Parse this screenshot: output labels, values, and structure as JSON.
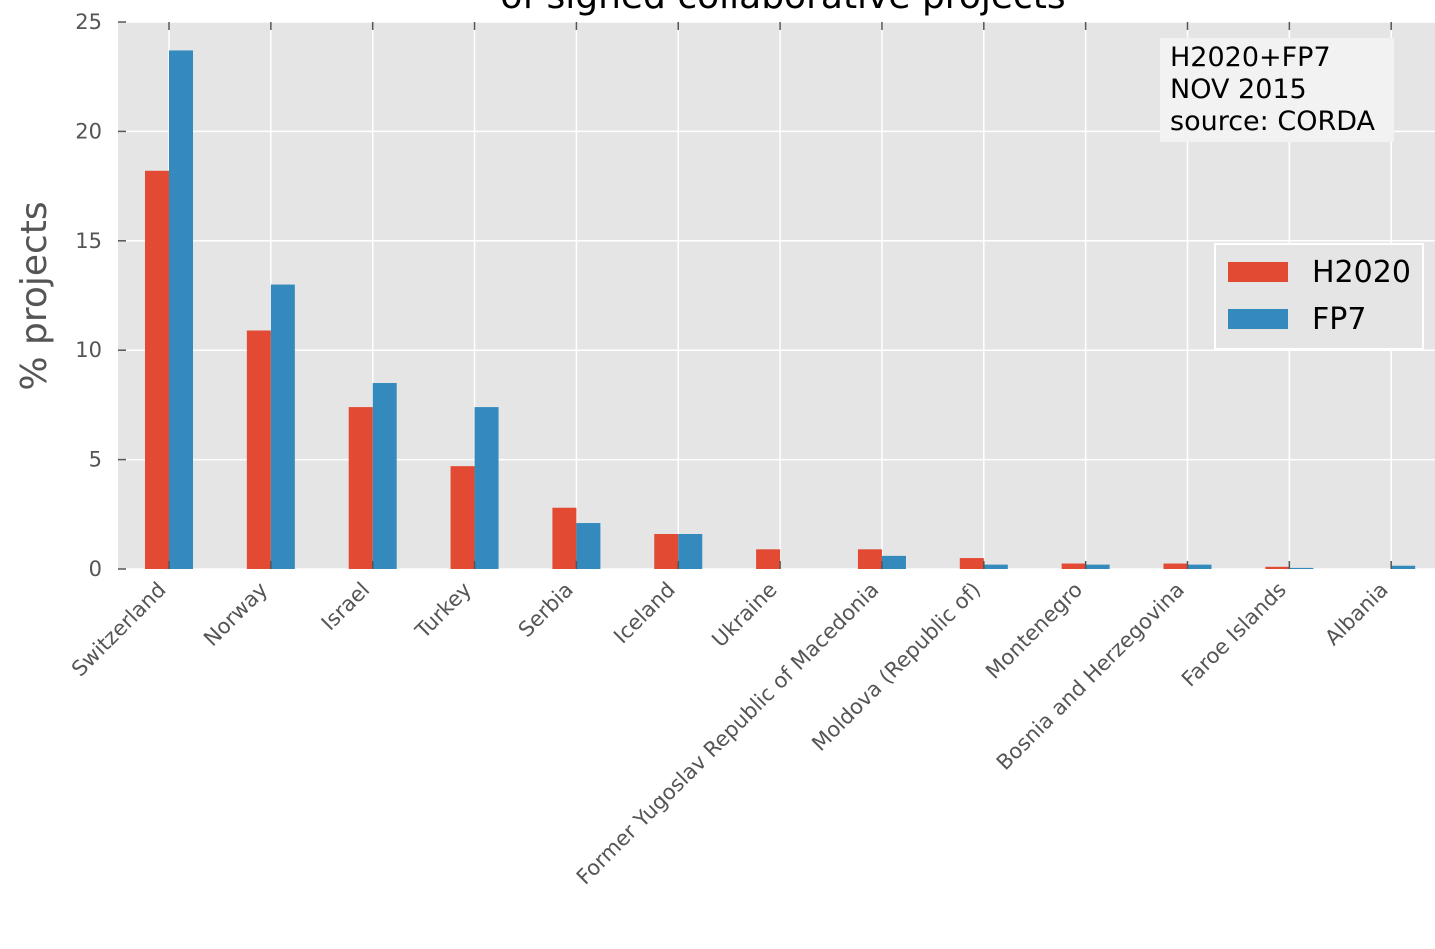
{
  "chart_data": {
    "type": "bar",
    "title": "of signed collaborative projects",
    "xlabel": "",
    "ylabel": "% projects",
    "ylim": [
      0,
      25
    ],
    "yticks": [
      "0",
      "5",
      "10",
      "15",
      "20",
      "25"
    ],
    "grid": true,
    "categories": [
      "Switzerland",
      "Norway",
      "Israel",
      "Turkey",
      "Serbia",
      "Iceland",
      "Ukraine",
      "Former Yugoslav Republic of Macedonia",
      "Moldova (Republic of)",
      "Montenegro",
      "Bosnia and Herzegovina",
      "Faroe Islands",
      "Albania"
    ],
    "series": [
      {
        "name": "H2020",
        "color": "#E24A33",
        "values": [
          18.2,
          10.9,
          7.4,
          4.7,
          2.8,
          1.6,
          0.9,
          0.9,
          0.5,
          0.25,
          0.25,
          0.1,
          0.0
        ]
      },
      {
        "name": "FP7",
        "color": "#348ABD",
        "values": [
          23.7,
          13.0,
          8.5,
          7.4,
          2.1,
          1.6,
          0.0,
          0.6,
          0.2,
          0.2,
          0.2,
          0.05,
          0.15
        ]
      }
    ],
    "legend_position": "right",
    "annotation": [
      "H2020+FP7",
      "NOV 2015",
      "source: CORDA"
    ]
  }
}
